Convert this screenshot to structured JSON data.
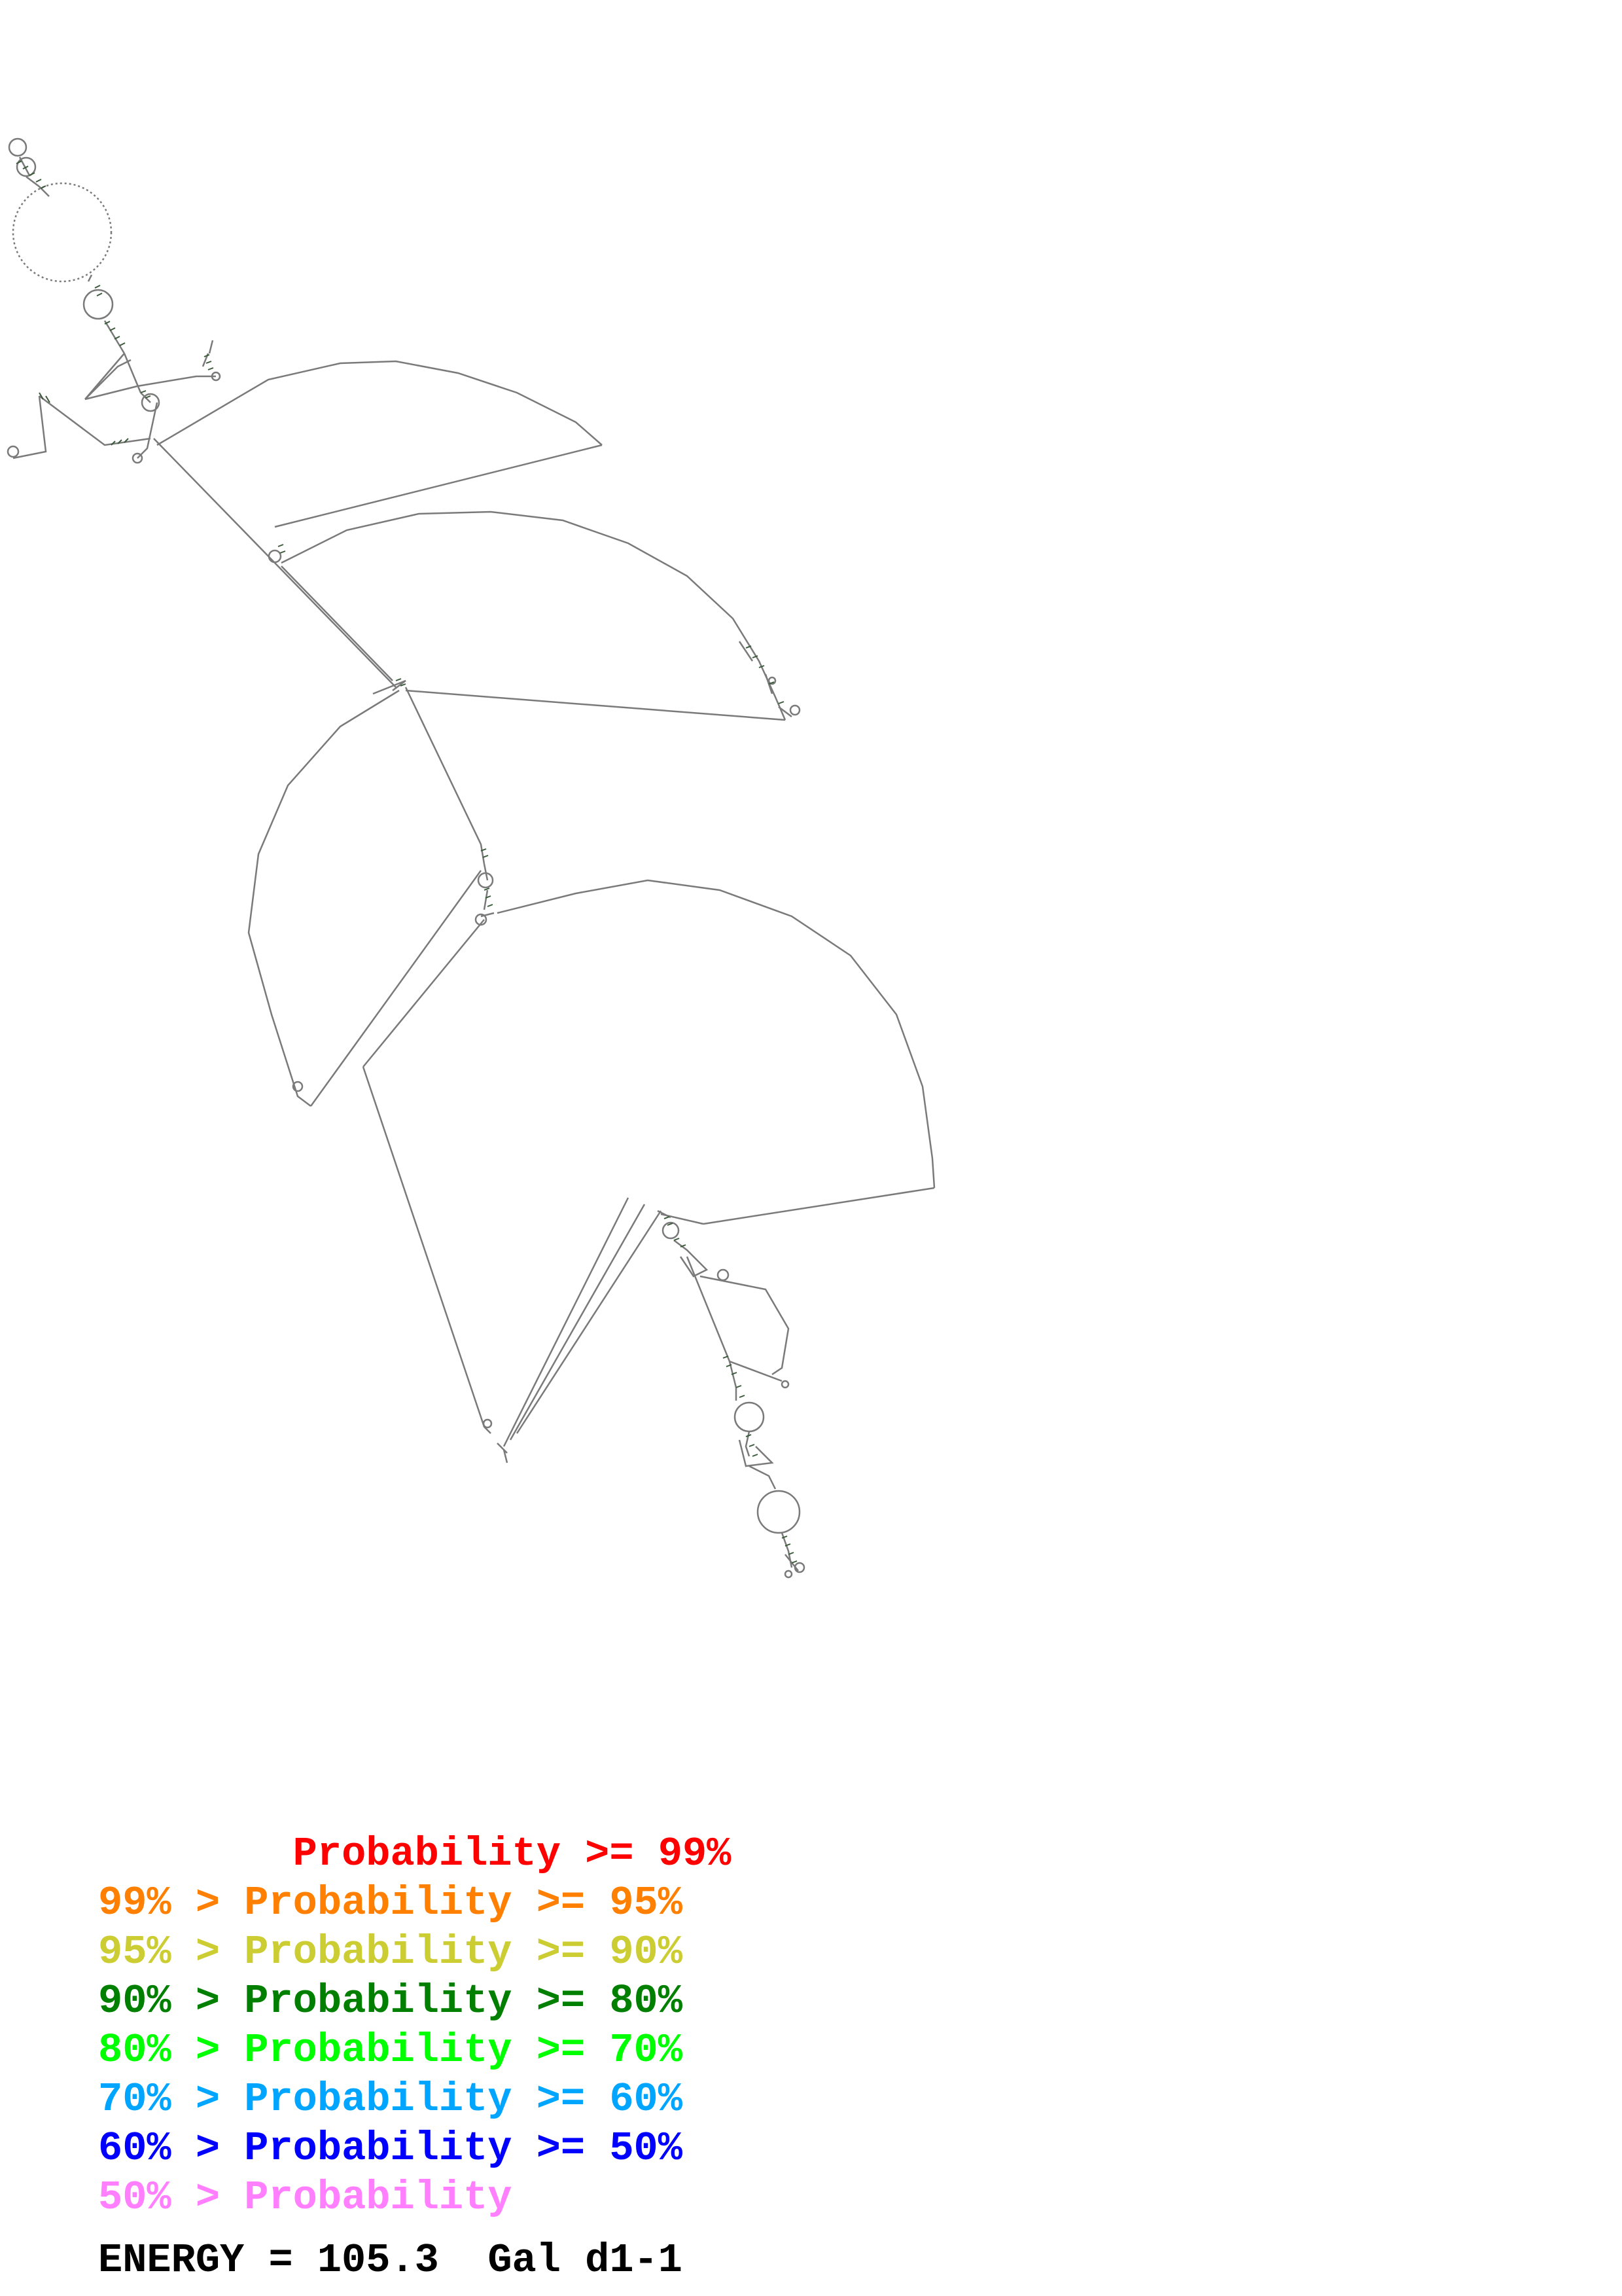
{
  "legend": [
    {
      "prefix": "        ",
      "label": "Probability >= 99%",
      "color": "#ff0000"
    },
    {
      "prefix": "99% > ",
      "label": "Probability >= 95%",
      "color": "#ff7f00"
    },
    {
      "prefix": "95% > ",
      "label": "Probability >= 90%",
      "color": "#cccc33"
    },
    {
      "prefix": "90% > ",
      "label": "Probability >= 80%",
      "color": "#007f00"
    },
    {
      "prefix": "80% > ",
      "label": "Probability >= 70%",
      "color": "#00ff00"
    },
    {
      "prefix": "70% > ",
      "label": "Probability >= 60%",
      "color": "#00a5ff"
    },
    {
      "prefix": "60% > ",
      "label": "Probability >= 50%",
      "color": "#0000ff"
    },
    {
      "prefix": "50% > ",
      "label": "Probability",
      "color": "#ff7fff"
    }
  ],
  "energy": {
    "label": "ENERGY = 105.3",
    "name": "Gal d1-1"
  },
  "colors": {
    "backbone": "#7a7a7a",
    "pairs": "#3a5a3a"
  }
}
